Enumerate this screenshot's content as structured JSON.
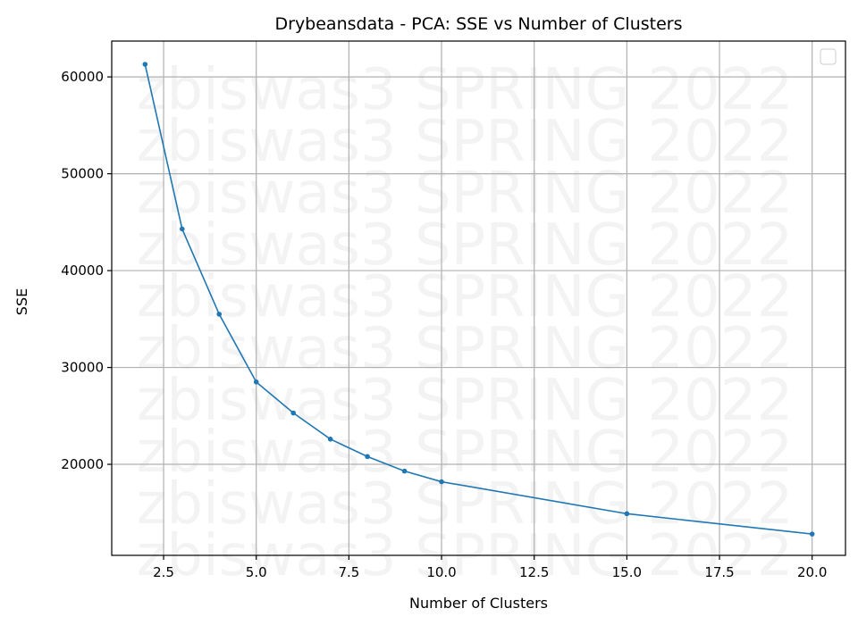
{
  "chart_data": {
    "type": "line",
    "title": "Drybeansdata - PCA: SSE vs Number of Clusters",
    "xlabel": "Number of Clusters",
    "ylabel": "SSE",
    "xlim": [
      1.1,
      20.9
    ],
    "ylim": [
      10600,
      63700
    ],
    "xticks": [
      2.5,
      5.0,
      7.5,
      10.0,
      12.5,
      15.0,
      17.5,
      20.0
    ],
    "xtick_labels": [
      "2.5",
      "5.0",
      "7.5",
      "10.0",
      "12.5",
      "15.0",
      "17.5",
      "20.0"
    ],
    "yticks": [
      20000,
      30000,
      40000,
      50000,
      60000
    ],
    "ytick_labels": [
      "20000",
      "30000",
      "40000",
      "50000",
      "60000"
    ],
    "grid": true,
    "legend": "top-right (empty)",
    "watermark": "zbiswas3 SPRING 2022",
    "series": [
      {
        "color": "#1f77b4",
        "x": [
          2,
          3,
          4,
          5,
          6,
          7,
          8,
          9,
          10,
          15,
          20
        ],
        "y": [
          61300,
          44300,
          35500,
          28500,
          25300,
          22600,
          20800,
          19300,
          18200,
          14900,
          12800
        ]
      }
    ]
  }
}
